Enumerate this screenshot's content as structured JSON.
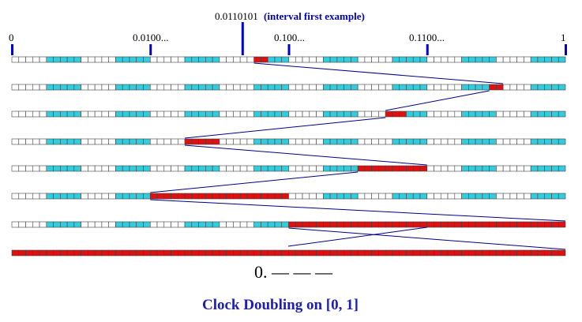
{
  "top_label": {
    "value": "0.0110101",
    "note": "(interval first example)"
  },
  "axis_labels": [
    "0",
    "0.0100...",
    "0.100...",
    "0.1100...",
    "1"
  ],
  "rows": [
    {
      "highlight": [
        35,
        36
      ]
    },
    {
      "highlight": [
        69,
        70
      ]
    },
    {
      "highlight": [
        54,
        56
      ]
    },
    {
      "highlight": [
        25,
        29
      ]
    },
    {
      "highlight": [
        50,
        59
      ]
    },
    {
      "highlight": [
        20,
        39
      ]
    },
    {
      "highlight": [
        40,
        79
      ]
    },
    {
      "highlight": [
        0,
        79
      ]
    }
  ],
  "binary_readout": "0. — — —",
  "caption": "Clock Doubling on  [0, 1]",
  "colors": {
    "cyan": "#33ccdd",
    "red": "#dd1111",
    "line": "#00008b",
    "tick": "#0000cc"
  }
}
